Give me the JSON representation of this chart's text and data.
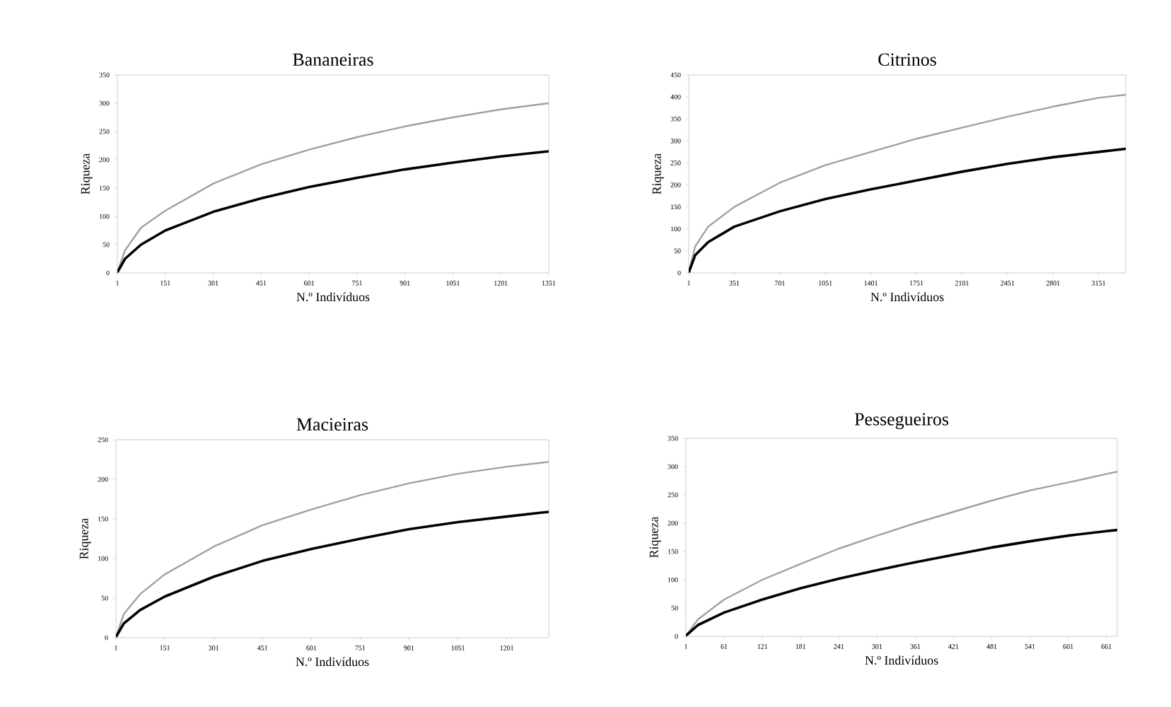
{
  "chart_data": [
    {
      "type": "line",
      "title": "Bananeiras",
      "xlabel": "N.º Indivíduos",
      "ylabel": "Riqueza",
      "marker": "none",
      "x": [
        1,
        25,
        75,
        151,
        301,
        451,
        601,
        751,
        901,
        1051,
        1201,
        1351
      ],
      "series": [
        {
          "color": "#a0a0a0",
          "values": [
            1,
            40,
            80,
            110,
            158,
            192,
            218,
            240,
            259,
            275,
            289,
            300
          ]
        },
        {
          "color": "#000000",
          "values": [
            1,
            25,
            50,
            75,
            108,
            132,
            152,
            168,
            183,
            195,
            206,
            215
          ]
        }
      ],
      "xlim": [
        1,
        1351
      ],
      "ylim": [
        0,
        350
      ],
      "xticks": [
        1,
        151,
        301,
        451,
        601,
        751,
        901,
        1051,
        1201,
        1351
      ],
      "yticks": [
        0,
        50,
        100,
        150,
        200,
        250,
        300,
        350
      ]
    },
    {
      "type": "line",
      "title": "Citrinos",
      "xlabel": "N.º Indivíduos",
      "ylabel": "Riqueza",
      "marker": "none",
      "x": [
        1,
        50,
        150,
        351,
        701,
        1051,
        1401,
        1751,
        2101,
        2451,
        2801,
        3151,
        3360
      ],
      "series": [
        {
          "color": "#a0a0a0",
          "values": [
            1,
            60,
            105,
            150,
            205,
            245,
            275,
            305,
            330,
            355,
            378,
            398,
            405
          ]
        },
        {
          "color": "#000000",
          "values": [
            1,
            40,
            70,
            105,
            140,
            168,
            190,
            210,
            230,
            248,
            263,
            275,
            282
          ]
        }
      ],
      "xlim": [
        1,
        3360
      ],
      "ylim": [
        0,
        450
      ],
      "xticks": [
        1,
        351,
        701,
        1051,
        1401,
        1751,
        2101,
        2451,
        2801,
        3151
      ],
      "yticks": [
        0,
        50,
        100,
        150,
        200,
        250,
        300,
        350,
        400,
        450
      ]
    },
    {
      "type": "line",
      "title": "Macieiras",
      "xlabel": "N.º Indivíduos",
      "ylabel": "Riqueza",
      "marker": "none",
      "x": [
        1,
        25,
        75,
        151,
        301,
        451,
        601,
        751,
        901,
        1051,
        1201,
        1330
      ],
      "series": [
        {
          "color": "#a0a0a0",
          "values": [
            1,
            30,
            55,
            80,
            115,
            142,
            162,
            180,
            195,
            207,
            216,
            222
          ]
        },
        {
          "color": "#000000",
          "values": [
            1,
            18,
            35,
            52,
            77,
            97,
            112,
            125,
            137,
            146,
            153,
            159
          ]
        }
      ],
      "xlim": [
        1,
        1330
      ],
      "ylim": [
        0,
        250
      ],
      "xticks": [
        1,
        151,
        301,
        451,
        601,
        751,
        901,
        1051,
        1201
      ],
      "yticks": [
        0,
        50,
        100,
        150,
        200,
        250
      ]
    },
    {
      "type": "line",
      "title": "Pessegueiros",
      "xlabel": "N.º Indivíduos",
      "ylabel": "Riqueza",
      "marker": "none",
      "x": [
        1,
        20,
        61,
        121,
        181,
        241,
        301,
        361,
        421,
        481,
        541,
        601,
        661,
        678
      ],
      "series": [
        {
          "color": "#a0a0a0",
          "values": [
            1,
            30,
            65,
            100,
            128,
            155,
            178,
            200,
            220,
            240,
            258,
            272,
            287,
            291
          ]
        },
        {
          "color": "#000000",
          "values": [
            1,
            20,
            42,
            65,
            85,
            102,
            117,
            131,
            144,
            157,
            168,
            178,
            186,
            188
          ]
        }
      ],
      "xlim": [
        1,
        678
      ],
      "ylim": [
        0,
        350
      ],
      "xticks": [
        1,
        61,
        121,
        181,
        241,
        301,
        361,
        421,
        481,
        541,
        601,
        661
      ],
      "yticks": [
        0,
        50,
        100,
        150,
        200,
        250,
        300,
        350
      ]
    }
  ]
}
